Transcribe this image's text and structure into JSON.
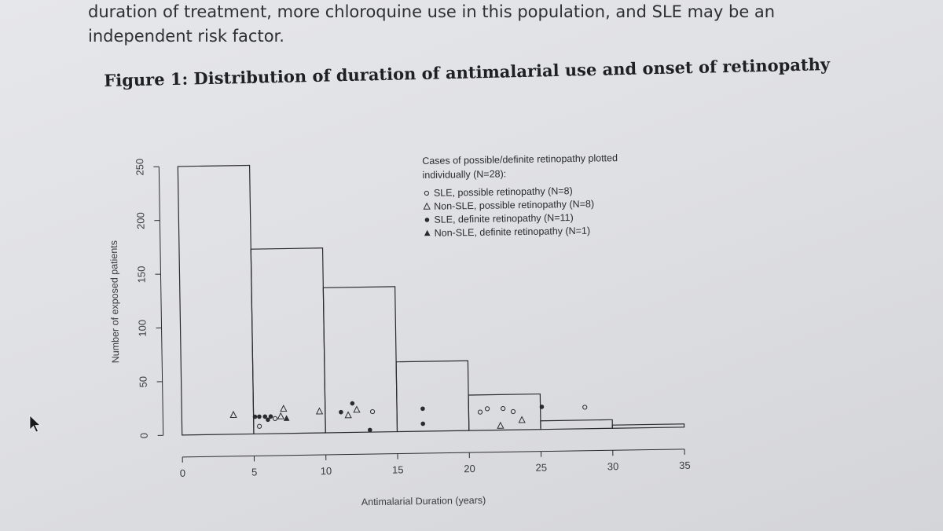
{
  "body_text": {
    "line1": "duration of treatment, more chloroquine use in this population, and SLE may be an",
    "line2": "independent risk factor."
  },
  "figure_title": "Figure 1: Distribution of duration of antimalarial use and onset of retinopathy",
  "chart_data": {
    "type": "bar",
    "subtype": "histogram",
    "xlabel": "Antimalarial Duration (years)",
    "ylabel": "Number of exposed patients",
    "xlim": [
      0,
      35
    ],
    "ylim": [
      0,
      250
    ],
    "x_ticks": [
      0,
      5,
      10,
      15,
      20,
      25,
      30,
      35
    ],
    "y_ticks": [
      0,
      50,
      100,
      150,
      200,
      250
    ],
    "bins": [
      {
        "start": 0,
        "end": 5,
        "value": 250
      },
      {
        "start": 5,
        "end": 10,
        "value": 172
      },
      {
        "start": 10,
        "end": 15,
        "value": 135
      },
      {
        "start": 15,
        "end": 20,
        "value": 65
      },
      {
        "start": 20,
        "end": 25,
        "value": 33
      },
      {
        "start": 25,
        "end": 30,
        "value": 8
      },
      {
        "start": 30,
        "end": 35,
        "value": 3
      }
    ],
    "legend": {
      "title_line1": "Cases of possible/definite retinopathy plotted",
      "title_line2": "individually (N=28):",
      "position": "top-right",
      "entries": [
        {
          "marker": "open-circle",
          "label": "SLE, possible retinopathy (N=8)"
        },
        {
          "marker": "open-triangle",
          "label": "Non-SLE, possible retinopathy (N=8)"
        },
        {
          "marker": "filled-circle",
          "label": "SLE, definite retinopathy (N=11)"
        },
        {
          "marker": "filled-triangle",
          "label": "Non-SLE, definite retinopathy (N=1)"
        }
      ]
    },
    "series": [
      {
        "marker": "open-circle",
        "points": [
          [
            5.4,
            7
          ],
          [
            6.5,
            14
          ],
          [
            13.3,
            19
          ],
          [
            20.8,
            17
          ],
          [
            21.3,
            20
          ],
          [
            22.4,
            20
          ],
          [
            28.1,
            20
          ],
          [
            23.1,
            17
          ]
        ]
      },
      {
        "marker": "open-triangle",
        "points": [
          [
            3.6,
            18
          ],
          [
            6.9,
            16
          ],
          [
            7.1,
            23
          ],
          [
            9.6,
            20
          ],
          [
            11.6,
            16
          ],
          [
            12.2,
            21
          ],
          [
            22.2,
            4
          ],
          [
            23.7,
            9
          ]
        ]
      },
      {
        "marker": "filled-circle",
        "points": [
          [
            5.1,
            16
          ],
          [
            5.4,
            16
          ],
          [
            5.8,
            16
          ],
          [
            6.2,
            16
          ],
          [
            6.0,
            13
          ],
          [
            11.1,
            19
          ],
          [
            11.9,
            27
          ],
          [
            13.1,
            2
          ],
          [
            16.8,
            21
          ],
          [
            16.8,
            7
          ],
          [
            25.1,
            21
          ]
        ]
      },
      {
        "marker": "filled-triangle",
        "points": [
          [
            7.3,
            14
          ]
        ]
      }
    ]
  }
}
